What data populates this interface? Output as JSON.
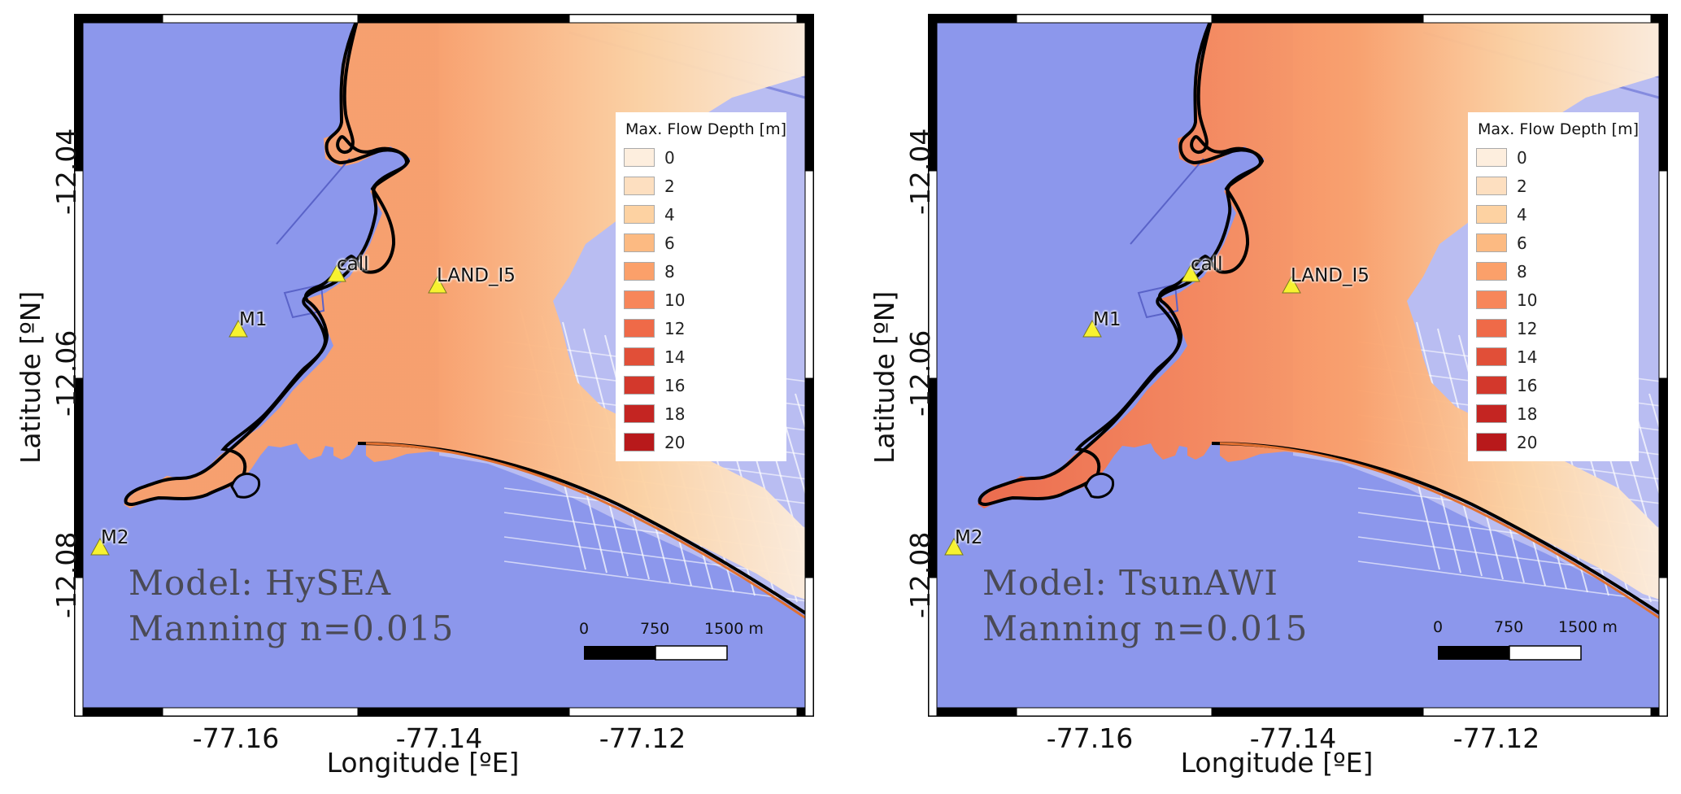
{
  "panels": [
    {
      "model_text": "Model: HySEA",
      "manning_text": "Manning n=0.015",
      "legend": {
        "title": "Max. Flow Depth [m]",
        "levels": [
          "0",
          "2",
          "4",
          "6",
          "8",
          "10",
          "12",
          "14",
          "16",
          "18",
          "20"
        ]
      },
      "gauges": [
        "call",
        "LAND_I5",
        "M1",
        "M2"
      ],
      "x_ticks": [
        "-77.16",
        "-77.14",
        "-77.12"
      ],
      "y_ticks": [
        "-12.04",
        "-12.06",
        "-12.08"
      ],
      "x_label": "Longitude [ºE]",
      "y_label": "Latitude [ºN]",
      "scale_bar": {
        "labels": [
          "0",
          "750",
          "1500 m"
        ]
      }
    },
    {
      "model_text": "Model: TsunAWI",
      "manning_text": "Manning n=0.015",
      "legend": {
        "title": "Max. Flow Depth [m]",
        "levels": [
          "0",
          "2",
          "4",
          "6",
          "8",
          "10",
          "12",
          "14",
          "16",
          "18",
          "20"
        ]
      },
      "gauges": [
        "call",
        "LAND_I5",
        "M1",
        "M2"
      ],
      "x_ticks": [
        "-77.16",
        "-77.14",
        "-77.12"
      ],
      "y_ticks": [
        "-12.04",
        "-12.06",
        "-12.08"
      ],
      "x_label": "Longitude [ºE]",
      "y_label": "Latitude [ºN]",
      "scale_bar": {
        "labels": [
          "0",
          "750",
          "1500 m"
        ]
      }
    }
  ],
  "colors": {
    "sea": "#8c97ec",
    "land_dry": "#b9bdf2",
    "legend_ramp": [
      "#fdeede",
      "#fddfc0",
      "#fdd2a2",
      "#fcba82",
      "#fba06a",
      "#f7865a",
      "#ef6a48",
      "#e14f38",
      "#d3382c",
      "#c42522",
      "#b8191b"
    ],
    "gauge_marker": "#f7f230"
  }
}
